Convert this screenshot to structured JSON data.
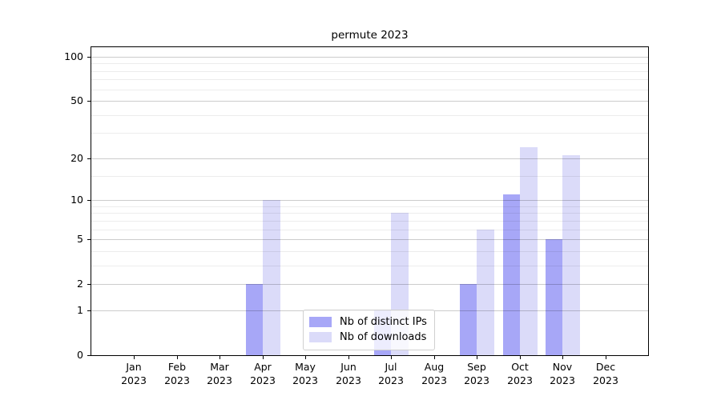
{
  "chart_data": {
    "type": "bar",
    "title": "permute 2023",
    "categories": [
      "Jan",
      "Feb",
      "Mar",
      "Apr",
      "May",
      "Jun",
      "Jul",
      "Aug",
      "Sep",
      "Oct",
      "Nov",
      "Dec"
    ],
    "x_sublabel_year": "2023",
    "series": [
      {
        "name": "Nb of distinct IPs",
        "color": "#a7a7f7",
        "values": [
          0,
          0,
          0,
          2,
          0,
          0,
          1,
          0,
          2,
          11,
          5,
          0
        ]
      },
      {
        "name": "Nb of downloads",
        "color": "#dbdbf9",
        "values": [
          0,
          0,
          0,
          10,
          0,
          0,
          8,
          0,
          6,
          24,
          21,
          0
        ]
      }
    ],
    "yscale": "log1p",
    "ylim": [
      0,
      116
    ],
    "y_major_ticks": [
      0,
      1,
      2,
      5,
      10,
      20,
      50,
      100
    ],
    "y_minor_ticks": [
      3,
      4,
      6,
      7,
      8,
      9,
      15,
      30,
      40,
      60,
      70,
      80,
      90
    ],
    "grid": true,
    "legend_position": "lower center",
    "colors": {
      "axis": "#000000",
      "major_grid": "#cccccc",
      "minor_grid": "#ececec",
      "background": "#ffffff"
    }
  }
}
